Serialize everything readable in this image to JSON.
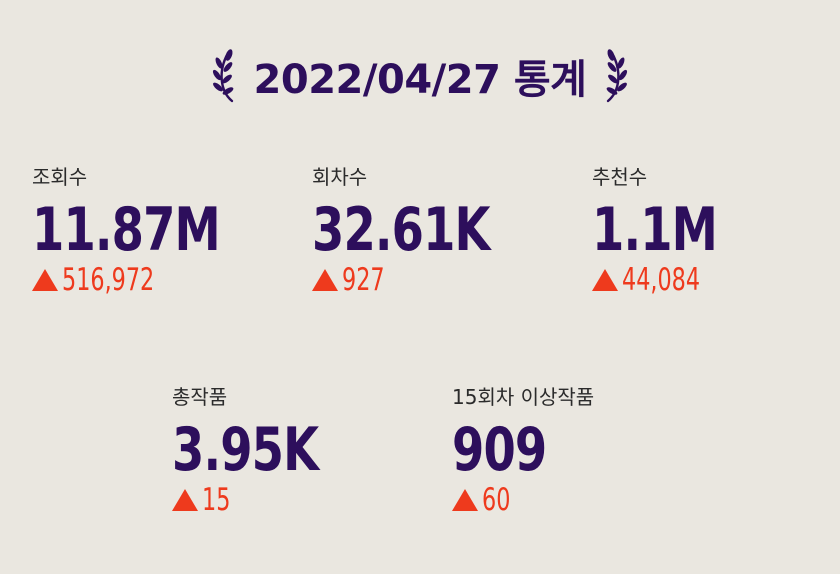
{
  "header": {
    "title": "2022/04/27 통계",
    "left_ornament": "laurel-left-icon",
    "right_ornament": "laurel-right-icon"
  },
  "colors": {
    "background": "#eae7e0",
    "value": "#2d0f5c",
    "increase": "#ee3a1d",
    "label": "#2b2b2b"
  },
  "stats": [
    {
      "label": "조회수",
      "value": "11.87M",
      "delta": "516,972",
      "direction": "up"
    },
    {
      "label": "회차수",
      "value": "32.61K",
      "delta": "927",
      "direction": "up"
    },
    {
      "label": "추천수",
      "value": "1.1M",
      "delta": "44,084",
      "direction": "up"
    },
    {
      "label": "총작품",
      "value": "3.95K",
      "delta": "15",
      "direction": "up"
    },
    {
      "label": "15회차 이상작품",
      "value": "909",
      "delta": "60",
      "direction": "up"
    }
  ]
}
